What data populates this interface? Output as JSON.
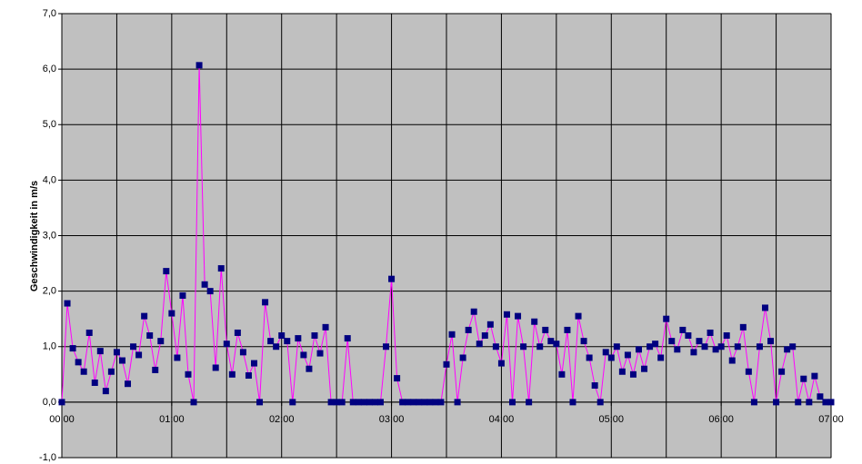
{
  "chart_data": {
    "type": "line",
    "y_label": "Geschwindigkeit in m/s",
    "x": [
      0,
      3,
      6,
      9,
      12,
      15,
      18,
      21,
      24,
      27,
      30,
      33,
      36,
      39,
      42,
      45,
      48,
      51,
      54,
      57,
      60,
      63,
      66,
      69,
      72,
      75,
      78,
      81,
      84,
      87,
      90,
      93,
      96,
      99,
      102,
      105,
      108,
      111,
      114,
      117,
      120,
      123,
      126,
      129,
      132,
      135,
      138,
      141,
      144,
      147,
      150,
      153,
      156,
      159,
      162,
      165,
      168,
      171,
      174,
      177,
      180,
      183,
      186,
      189,
      192,
      195,
      198,
      201,
      204,
      207,
      210,
      213,
      216,
      219,
      222,
      225,
      228,
      231,
      234,
      237,
      240,
      243,
      246,
      249,
      252,
      255,
      258,
      261,
      264,
      267,
      270,
      273,
      276,
      279,
      282,
      285,
      288,
      291,
      294,
      297,
      300,
      303,
      306,
      309,
      312,
      315,
      318,
      321,
      324,
      327,
      330,
      333,
      336,
      339,
      342,
      345,
      348,
      351,
      354,
      357,
      360,
      363,
      366,
      369,
      372,
      375,
      378,
      381,
      384,
      387,
      390,
      393,
      396,
      399,
      402,
      405,
      408,
      411,
      414,
      417,
      420
    ],
    "values": [
      0,
      1.78,
      0.97,
      0.72,
      0.55,
      1.25,
      0.35,
      0.92,
      0.2,
      0.55,
      0.9,
      0.75,
      0.33,
      1.0,
      0.85,
      1.55,
      1.2,
      0.58,
      1.1,
      2.36,
      1.6,
      0.8,
      1.92,
      0.5,
      0,
      6.07,
      2.12,
      2.0,
      0.62,
      2.41,
      1.05,
      0.5,
      1.25,
      0.9,
      0.48,
      0.7,
      0,
      1.8,
      1.1,
      1.0,
      1.2,
      1.1,
      0,
      1.15,
      0.85,
      0.6,
      1.2,
      0.88,
      1.35,
      0,
      0,
      0,
      1.15,
      0,
      0,
      0,
      0,
      0,
      0,
      1.0,
      2.22,
      0.43,
      0,
      0,
      0,
      0,
      0,
      0,
      0,
      0,
      0.68,
      1.22,
      0,
      0.8,
      1.3,
      1.63,
      1.05,
      1.2,
      1.4,
      1.0,
      0.7,
      1.58,
      0,
      1.55,
      1.0,
      0,
      1.45,
      1.0,
      1.3,
      1.1,
      1.05,
      0.5,
      1.3,
      0,
      1.55,
      1.1,
      0.8,
      0.3,
      0,
      0.9,
      0.8,
      1.0,
      0.55,
      0.85,
      0.5,
      0.95,
      0.6,
      1.0,
      1.05,
      0.8,
      1.5,
      1.1,
      0.95,
      1.3,
      1.2,
      0.9,
      1.1,
      1.0,
      1.25,
      0.95,
      1.0,
      1.2,
      0.75,
      1.0,
      1.35,
      0.55,
      0,
      1.0,
      1.7,
      1.1,
      0,
      0.55,
      0.95,
      1.0,
      0,
      0.42,
      0,
      0.47,
      0.1,
      0,
      0
    ],
    "color": "#ff00ff",
    "marker_color": "#000080",
    "plot_background": "#c0c0c0",
    "xlim": [
      0,
      420
    ],
    "xticks": [
      {
        "value": 0,
        "label": "00:00"
      },
      {
        "value": 60,
        "label": "01:00"
      },
      {
        "value": 120,
        "label": "02:00"
      },
      {
        "value": 180,
        "label": "03:00"
      },
      {
        "value": 240,
        "label": "04:00"
      },
      {
        "value": 300,
        "label": "05:00"
      },
      {
        "value": 360,
        "label": "06:00"
      },
      {
        "value": 420,
        "label": "07:00"
      }
    ],
    "xminorticks": [
      30,
      90,
      150,
      210,
      270,
      330,
      390
    ],
    "ylim": [
      -1,
      7
    ],
    "yticks": [
      {
        "value": -1,
        "label": "-1,0"
      },
      {
        "value": 0,
        "label": "0,0"
      },
      {
        "value": 1,
        "label": "1,0"
      },
      {
        "value": 2,
        "label": "2,0"
      },
      {
        "value": 3,
        "label": "3,0"
      },
      {
        "value": 4,
        "label": "4,0"
      },
      {
        "value": 5,
        "label": "5,0"
      },
      {
        "value": 6,
        "label": "6,0"
      },
      {
        "value": 7,
        "label": "7,0"
      }
    ],
    "grid": true
  }
}
